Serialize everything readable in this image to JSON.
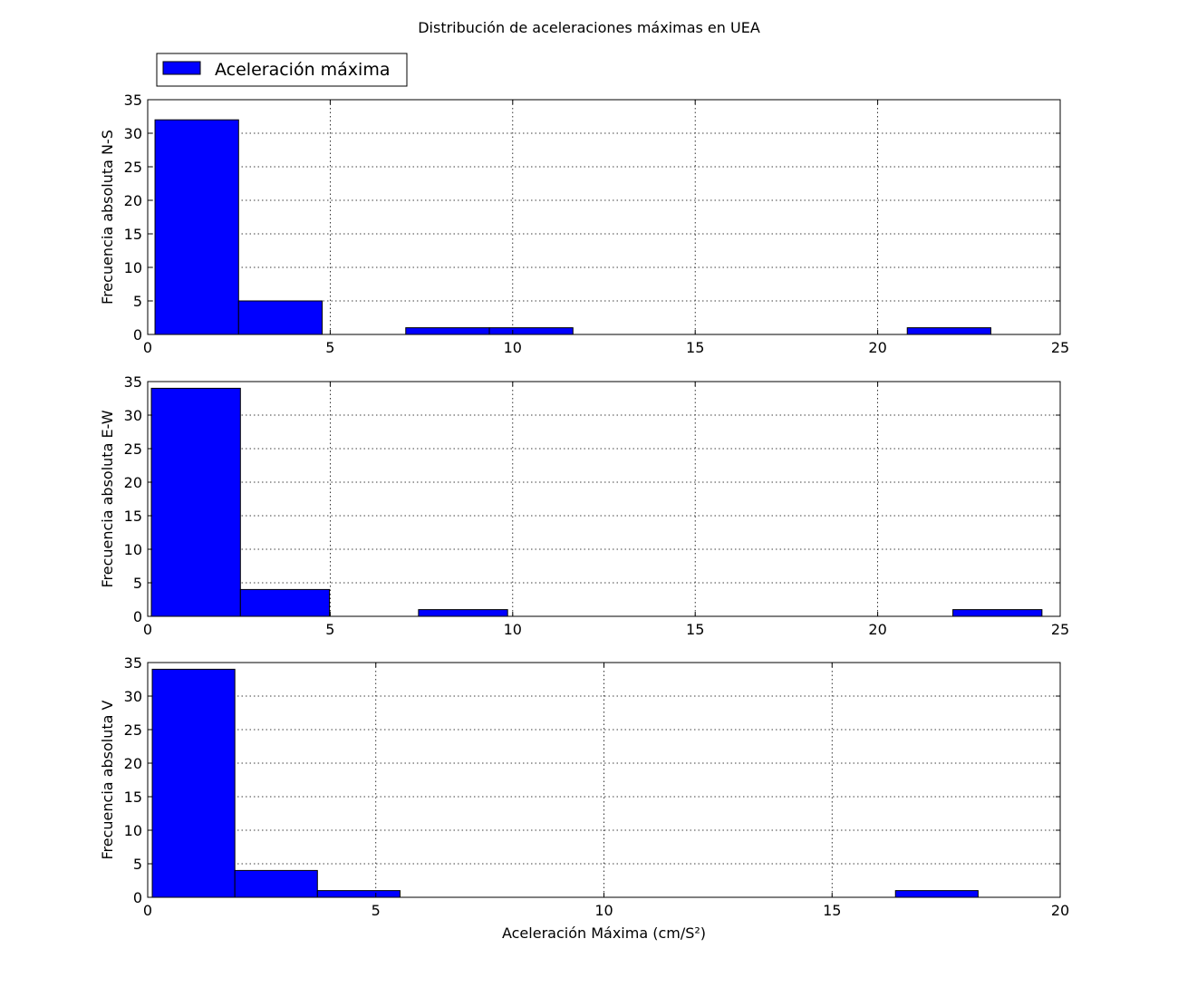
{
  "figure": {
    "title": "Distribución de aceleraciones máximas en UEA",
    "legend": {
      "label": "Aceleración máxima",
      "color": "#0000ff",
      "placement": "upper-left, above first panel"
    }
  },
  "chart_data": [
    {
      "type": "bar",
      "subtype": "histogram",
      "ylabel": "Frecuencia absoluta N-S",
      "xlabel": "",
      "xlim": [
        0,
        25
      ],
      "ylim": [
        0,
        35
      ],
      "xticks": [
        0,
        5,
        10,
        15,
        20,
        25
      ],
      "yticks": [
        0,
        5,
        10,
        15,
        20,
        25,
        30,
        35
      ],
      "grid": true,
      "color": "#0000ff",
      "bin_edges": [
        0.2,
        2.49,
        4.78,
        7.07,
        9.36,
        11.65,
        13.94,
        16.23,
        18.52,
        20.81,
        23.1
      ],
      "values": [
        32,
        5,
        0,
        1,
        1,
        0,
        0,
        0,
        0,
        1
      ]
    },
    {
      "type": "bar",
      "subtype": "histogram",
      "ylabel": "Frecuencia absoluta E-W",
      "xlabel": "",
      "xlim": [
        0,
        25
      ],
      "ylim": [
        0,
        35
      ],
      "xticks": [
        0,
        5,
        10,
        15,
        20,
        25
      ],
      "yticks": [
        0,
        5,
        10,
        15,
        20,
        25,
        30,
        35
      ],
      "grid": true,
      "color": "#0000ff",
      "bin_edges": [
        0.1,
        2.54,
        4.98,
        7.42,
        9.86,
        12.3,
        14.74,
        17.18,
        19.62,
        22.06,
        24.5
      ],
      "values": [
        34,
        4,
        0,
        1,
        0,
        0,
        0,
        0,
        0,
        1
      ]
    },
    {
      "type": "bar",
      "subtype": "histogram",
      "ylabel": "Frecuencia absoluta V",
      "xlabel": "Aceleración Máxima (cm/S²)",
      "xlim": [
        0,
        20
      ],
      "ylim": [
        0,
        35
      ],
      "xticks": [
        0,
        5,
        10,
        15,
        20
      ],
      "yticks": [
        0,
        5,
        10,
        15,
        20,
        25,
        30,
        35
      ],
      "grid": true,
      "color": "#0000ff",
      "bin_edges": [
        0.1,
        1.91,
        3.72,
        5.53,
        7.34,
        9.15,
        10.96,
        12.77,
        14.58,
        16.39,
        18.2
      ],
      "values": [
        34,
        4,
        1,
        0,
        0,
        0,
        0,
        0,
        0,
        1
      ]
    }
  ]
}
